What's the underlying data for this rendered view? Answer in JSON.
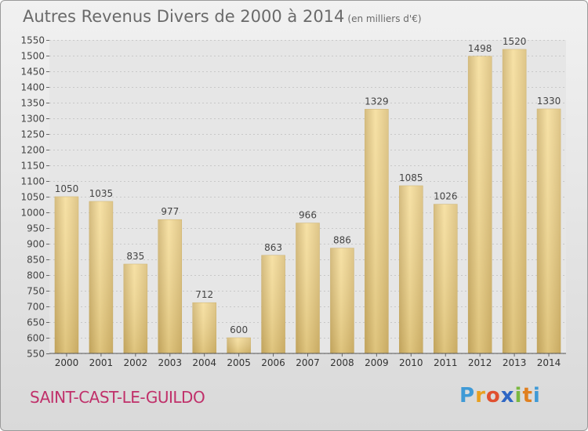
{
  "header": {
    "title": "Autres Revenus Divers de 2000 à 2014",
    "subtitle": "(en milliers d'€)"
  },
  "footer": {
    "town": "SAINT-CAST-LE-GUILDO",
    "logo_letters": [
      "P",
      "r",
      "o",
      "x",
      "i",
      "t",
      "i"
    ],
    "logo_colors": [
      "#3f9ad6",
      "#e8a020",
      "#e05030",
      "#2e66c4",
      "#7ab840",
      "#e08020",
      "#3f9ad6"
    ]
  },
  "chart_data": {
    "type": "bar",
    "title": "Autres Revenus Divers de 2000 à 2014",
    "subtitle": "(en milliers d'€)",
    "categories": [
      "2000",
      "2001",
      "2002",
      "2003",
      "2004",
      "2005",
      "2006",
      "2007",
      "2008",
      "2009",
      "2010",
      "2011",
      "2012",
      "2013",
      "2014"
    ],
    "values": [
      1050,
      1035,
      835,
      977,
      712,
      600,
      863,
      966,
      886,
      1329,
      1085,
      1026,
      1498,
      1520,
      1330
    ],
    "ylim": [
      550,
      1550
    ],
    "yticks": [
      550,
      600,
      650,
      700,
      750,
      800,
      850,
      900,
      950,
      1000,
      1050,
      1100,
      1150,
      1200,
      1250,
      1300,
      1350,
      1400,
      1450,
      1500,
      1550
    ],
    "grid": true,
    "xlabel": "",
    "ylabel": "",
    "bar_color": "#e8ca7e"
  }
}
